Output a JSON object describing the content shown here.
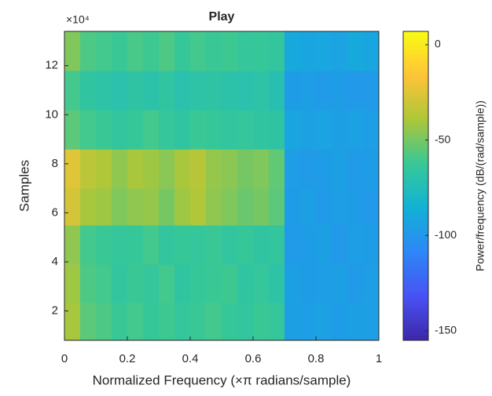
{
  "chart_data": {
    "type": "heatmap",
    "title": "Play",
    "xlabel": "Normalized Frequency (×π radians/sample)",
    "ylabel": "Samples",
    "y_scale_label": "×10⁴",
    "colorbar_label": "Power/frequency (dB/(rad/sample))",
    "colormap": "parula",
    "x_edges": [
      0,
      0.05,
      0.1,
      0.15,
      0.2,
      0.25,
      0.3,
      0.35,
      0.4,
      0.45,
      0.5,
      0.55,
      0.6,
      0.65,
      0.7,
      0.75,
      0.8,
      0.85,
      0.9,
      0.95,
      1
    ],
    "y_edges": [
      0.8,
      2.35,
      3.9,
      5.5,
      7.0,
      8.6,
      10.2,
      11.8,
      13.4
    ],
    "values": [
      [
        -40,
        -55,
        -58,
        -62,
        -60,
        -63,
        -61,
        -64,
        -62,
        -60,
        -63,
        -65,
        -62,
        -64,
        -95,
        -96,
        -94,
        -97,
        -95,
        -96
      ],
      [
        -42,
        -58,
        -60,
        -65,
        -62,
        -64,
        -60,
        -66,
        -63,
        -62,
        -61,
        -66,
        -64,
        -68,
        -95,
        -97,
        -96,
        -95,
        -98,
        -96
      ],
      [
        -45,
        -60,
        -62,
        -64,
        -63,
        -60,
        -65,
        -63,
        -64,
        -62,
        -65,
        -63,
        -66,
        -65,
        -98,
        -97,
        -95,
        -99,
        -96,
        -97
      ],
      [
        -28,
        -40,
        -42,
        -48,
        -45,
        -44,
        -50,
        -42,
        -38,
        -45,
        -48,
        -52,
        -50,
        -55,
        -97,
        -95,
        -98,
        -96,
        -97,
        -99
      ],
      [
        -25,
        -35,
        -38,
        -45,
        -40,
        -42,
        -46,
        -40,
        -36,
        -44,
        -46,
        -50,
        -48,
        -54,
        -96,
        -98,
        -97,
        -95,
        -98,
        -97
      ],
      [
        -55,
        -60,
        -62,
        -65,
        -63,
        -60,
        -64,
        -66,
        -62,
        -63,
        -65,
        -64,
        -66,
        -67,
        -92,
        -94,
        -93,
        -95,
        -94,
        -96
      ],
      [
        -60,
        -66,
        -68,
        -70,
        -67,
        -69,
        -66,
        -70,
        -68,
        -67,
        -69,
        -70,
        -68,
        -72,
        -97,
        -96,
        -98,
        -97,
        -99,
        -98
      ],
      [
        -48,
        -58,
        -60,
        -62,
        -59,
        -61,
        -58,
        -63,
        -60,
        -62,
        -61,
        -64,
        -63,
        -65,
        -90,
        -92,
        -91,
        -93,
        -90,
        -92
      ]
    ],
    "xlim": [
      0,
      1
    ],
    "xticks": [
      0,
      0.2,
      0.4,
      0.6,
      0.8,
      1
    ],
    "ylim": [
      0.8,
      13.4
    ],
    "yticks": [
      2,
      4,
      6,
      8,
      10,
      12
    ],
    "clim": [
      -155,
      7
    ],
    "cticks": [
      -150,
      -100,
      -50,
      0
    ]
  }
}
